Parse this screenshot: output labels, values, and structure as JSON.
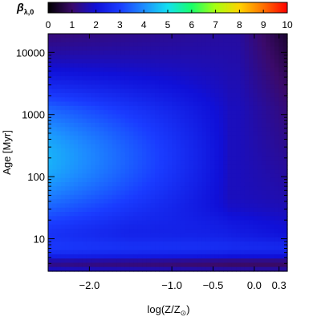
{
  "chart_data": {
    "type": "heatmap",
    "title": "",
    "colorbar": {
      "label": "β",
      "label_sub": "λ,0",
      "range": [
        0,
        10
      ],
      "ticks": [
        "0",
        "1",
        "2",
        "3",
        "4",
        "5",
        "6",
        "7",
        "8",
        "9",
        "10"
      ]
    },
    "x_axis": {
      "label_main": "log(Z/Z",
      "label_sub": "⊙",
      "label_close": ")",
      "range": [
        -2.5,
        0.4
      ],
      "ticks": [
        {
          "value": -2.0,
          "label": "−2.0"
        },
        {
          "value": -1.0,
          "label": "−1.0"
        },
        {
          "value": -0.5,
          "label": "−0.5"
        },
        {
          "value": 0.0,
          "label": "0.0"
        },
        {
          "value": 0.3,
          "label": "0.3"
        }
      ]
    },
    "y_axis": {
      "label": "Age [Myr]",
      "scale": "log",
      "range": [
        3,
        20000
      ],
      "ticks": [
        {
          "value": 10,
          "label": "10"
        },
        {
          "value": 100,
          "label": "100"
        },
        {
          "value": 1000,
          "label": "1000"
        },
        {
          "value": 10000,
          "label": "10000"
        }
      ]
    },
    "colormap": [
      "#000000",
      "#3b0a6b",
      "#1010d8",
      "#1a3cff",
      "#1d8cff",
      "#13e0f0",
      "#18ff6a",
      "#a8ff10",
      "#ffd300",
      "#ff7000",
      "#ff0000"
    ],
    "grid": false
  }
}
